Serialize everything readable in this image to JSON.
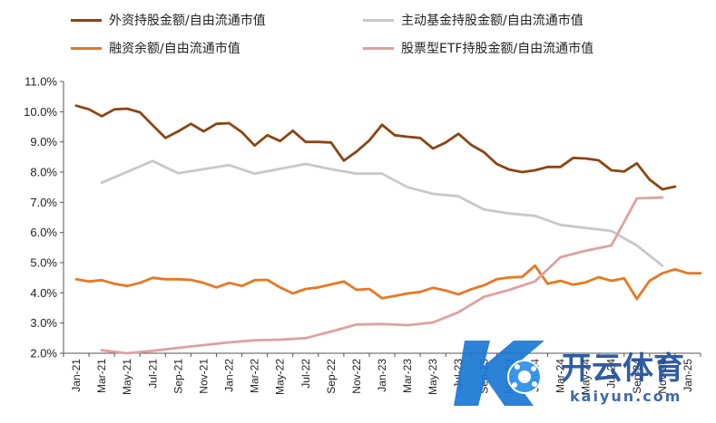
{
  "chart_data": {
    "type": "line",
    "title": "",
    "xlabel": "",
    "ylabel": "",
    "ylim": [
      0.02,
      0.11
    ],
    "y_ticks": [
      "11.0%",
      "10.0%",
      "9.0%",
      "8.0%",
      "7.0%",
      "6.0%",
      "5.0%",
      "4.0%",
      "3.0%",
      "2.0%"
    ],
    "x_tick_labels": [
      "Jan-21",
      "Mar-21",
      "May-21",
      "Jul-21",
      "Sep-21",
      "Nov-21",
      "Jan-22",
      "Mar-22",
      "May-22",
      "Jul-22",
      "Sep-22",
      "Nov-22",
      "Jan-23",
      "Mar-23",
      "May-23",
      "Jul-23",
      "Sep-23",
      "Nov-23",
      "Jan-24",
      "Mar-24",
      "May-24",
      "Jul-24",
      "Sep-24",
      "Nov-24",
      "Jan-25"
    ],
    "grid": false,
    "legend_placement": "top",
    "series": [
      {
        "name": "外资持股金额/自由流通市值",
        "color": "#8B4513",
        "points": [
          [
            0,
            0.102
          ],
          [
            0.5,
            0.1008
          ],
          [
            1,
            0.0985
          ],
          [
            1.5,
            0.1008
          ],
          [
            2,
            0.101
          ],
          [
            2.5,
            0.0998
          ],
          [
            3,
            0.0955
          ],
          [
            3.5,
            0.0913
          ],
          [
            4,
            0.0935
          ],
          [
            4.5,
            0.096
          ],
          [
            5,
            0.0935
          ],
          [
            5.5,
            0.096
          ],
          [
            6,
            0.0962
          ],
          [
            6.5,
            0.0932
          ],
          [
            7,
            0.0888
          ],
          [
            7.5,
            0.0922
          ],
          [
            8,
            0.0903
          ],
          [
            8.5,
            0.0937
          ],
          [
            9,
            0.09
          ],
          [
            9.5,
            0.09
          ],
          [
            10,
            0.0898
          ],
          [
            10.5,
            0.0838
          ],
          [
            11,
            0.0868
          ],
          [
            11.5,
            0.0905
          ],
          [
            12,
            0.0957
          ],
          [
            12.5,
            0.0922
          ],
          [
            13,
            0.0917
          ],
          [
            13.5,
            0.0913
          ],
          [
            14,
            0.0878
          ],
          [
            14.5,
            0.0898
          ],
          [
            15,
            0.0927
          ],
          [
            15.5,
            0.089
          ],
          [
            16,
            0.0866
          ],
          [
            16.5,
            0.0827
          ],
          [
            17,
            0.0808
          ],
          [
            17.5,
            0.08
          ],
          [
            18,
            0.0806
          ],
          [
            18.5,
            0.0817
          ],
          [
            19,
            0.0817
          ],
          [
            19.5,
            0.0847
          ],
          [
            20,
            0.0845
          ],
          [
            20.5,
            0.0839
          ],
          [
            21,
            0.0806
          ],
          [
            21.5,
            0.0802
          ],
          [
            22,
            0.0829
          ],
          [
            22.5,
            0.0775
          ],
          [
            23,
            0.0743
          ],
          [
            23.5,
            0.0752
          ]
        ]
      },
      {
        "name": "主动基金持股金额/自由流通市值",
        "color": "#C8C8C8",
        "points": [
          [
            1,
            0.0765
          ],
          [
            3,
            0.0837
          ],
          [
            4,
            0.0796
          ],
          [
            6,
            0.0823
          ],
          [
            7,
            0.0795
          ],
          [
            9,
            0.0827
          ],
          [
            10,
            0.081
          ],
          [
            11,
            0.0795
          ],
          [
            12,
            0.0795
          ],
          [
            13,
            0.075
          ],
          [
            14,
            0.0728
          ],
          [
            15,
            0.072
          ],
          [
            16,
            0.0676
          ],
          [
            17,
            0.0663
          ],
          [
            18,
            0.0655
          ],
          [
            19,
            0.0625
          ],
          [
            20,
            0.0615
          ],
          [
            21,
            0.0605
          ],
          [
            22,
            0.0557
          ],
          [
            23,
            0.049
          ]
        ]
      },
      {
        "name": "融资余额/自由流通市值",
        "color": "#E87722",
        "points": [
          [
            0,
            0.0445
          ],
          [
            0.5,
            0.0438
          ],
          [
            1,
            0.0442
          ],
          [
            1.5,
            0.043
          ],
          [
            2,
            0.0423
          ],
          [
            2.5,
            0.0433
          ],
          [
            3,
            0.045
          ],
          [
            3.5,
            0.0445
          ],
          [
            4,
            0.0445
          ],
          [
            4.5,
            0.0443
          ],
          [
            5,
            0.0433
          ],
          [
            5.5,
            0.0418
          ],
          [
            6,
            0.0433
          ],
          [
            6.5,
            0.0423
          ],
          [
            7,
            0.0442
          ],
          [
            7.5,
            0.0443
          ],
          [
            8,
            0.0418
          ],
          [
            8.5,
            0.0398
          ],
          [
            9,
            0.0413
          ],
          [
            9.5,
            0.0418
          ],
          [
            10,
            0.0428
          ],
          [
            10.5,
            0.0438
          ],
          [
            11,
            0.041
          ],
          [
            11.5,
            0.0413
          ],
          [
            12,
            0.0382
          ],
          [
            12.5,
            0.039
          ],
          [
            13,
            0.0398
          ],
          [
            13.5,
            0.0403
          ],
          [
            14,
            0.0417
          ],
          [
            14.5,
            0.0408
          ],
          [
            15,
            0.0395
          ],
          [
            15.5,
            0.0412
          ],
          [
            16,
            0.0425
          ],
          [
            16.5,
            0.0445
          ],
          [
            17,
            0.0451
          ],
          [
            17.5,
            0.0453
          ],
          [
            18,
            0.049
          ],
          [
            18.5,
            0.043
          ],
          [
            19,
            0.044
          ],
          [
            19.5,
            0.0427
          ],
          [
            20,
            0.0435
          ],
          [
            20.5,
            0.0452
          ],
          [
            21,
            0.044
          ],
          [
            21.5,
            0.0448
          ],
          [
            22,
            0.038
          ],
          [
            22.5,
            0.044
          ],
          [
            23,
            0.0465
          ],
          [
            23.5,
            0.0478
          ],
          [
            24,
            0.0465
          ],
          [
            24.5,
            0.0465
          ]
        ]
      },
      {
        "name": "股票型ETF持股金额/自由流通市值",
        "color": "#E0A0A0",
        "points": [
          [
            1,
            0.021
          ],
          [
            2,
            0.02
          ],
          [
            3,
            0.0208
          ],
          [
            4,
            0.0218
          ],
          [
            5,
            0.0227
          ],
          [
            6,
            0.0236
          ],
          [
            7,
            0.0243
          ],
          [
            8,
            0.0245
          ],
          [
            9,
            0.025
          ],
          [
            10,
            0.0272
          ],
          [
            11,
            0.0295
          ],
          [
            12,
            0.0297
          ],
          [
            13,
            0.0293
          ],
          [
            14,
            0.0302
          ],
          [
            15,
            0.0336
          ],
          [
            16,
            0.0387
          ],
          [
            17,
            0.041
          ],
          [
            18,
            0.0438
          ],
          [
            19,
            0.0518
          ],
          [
            20,
            0.054
          ],
          [
            21,
            0.0557
          ],
          [
            22,
            0.0713
          ],
          [
            23,
            0.0716
          ]
        ]
      }
    ]
  },
  "watermark": {
    "logo_icon": "kaiyun-k-soccer-logo",
    "text": "开云体育",
    "subtext": "kaiyun.com"
  }
}
